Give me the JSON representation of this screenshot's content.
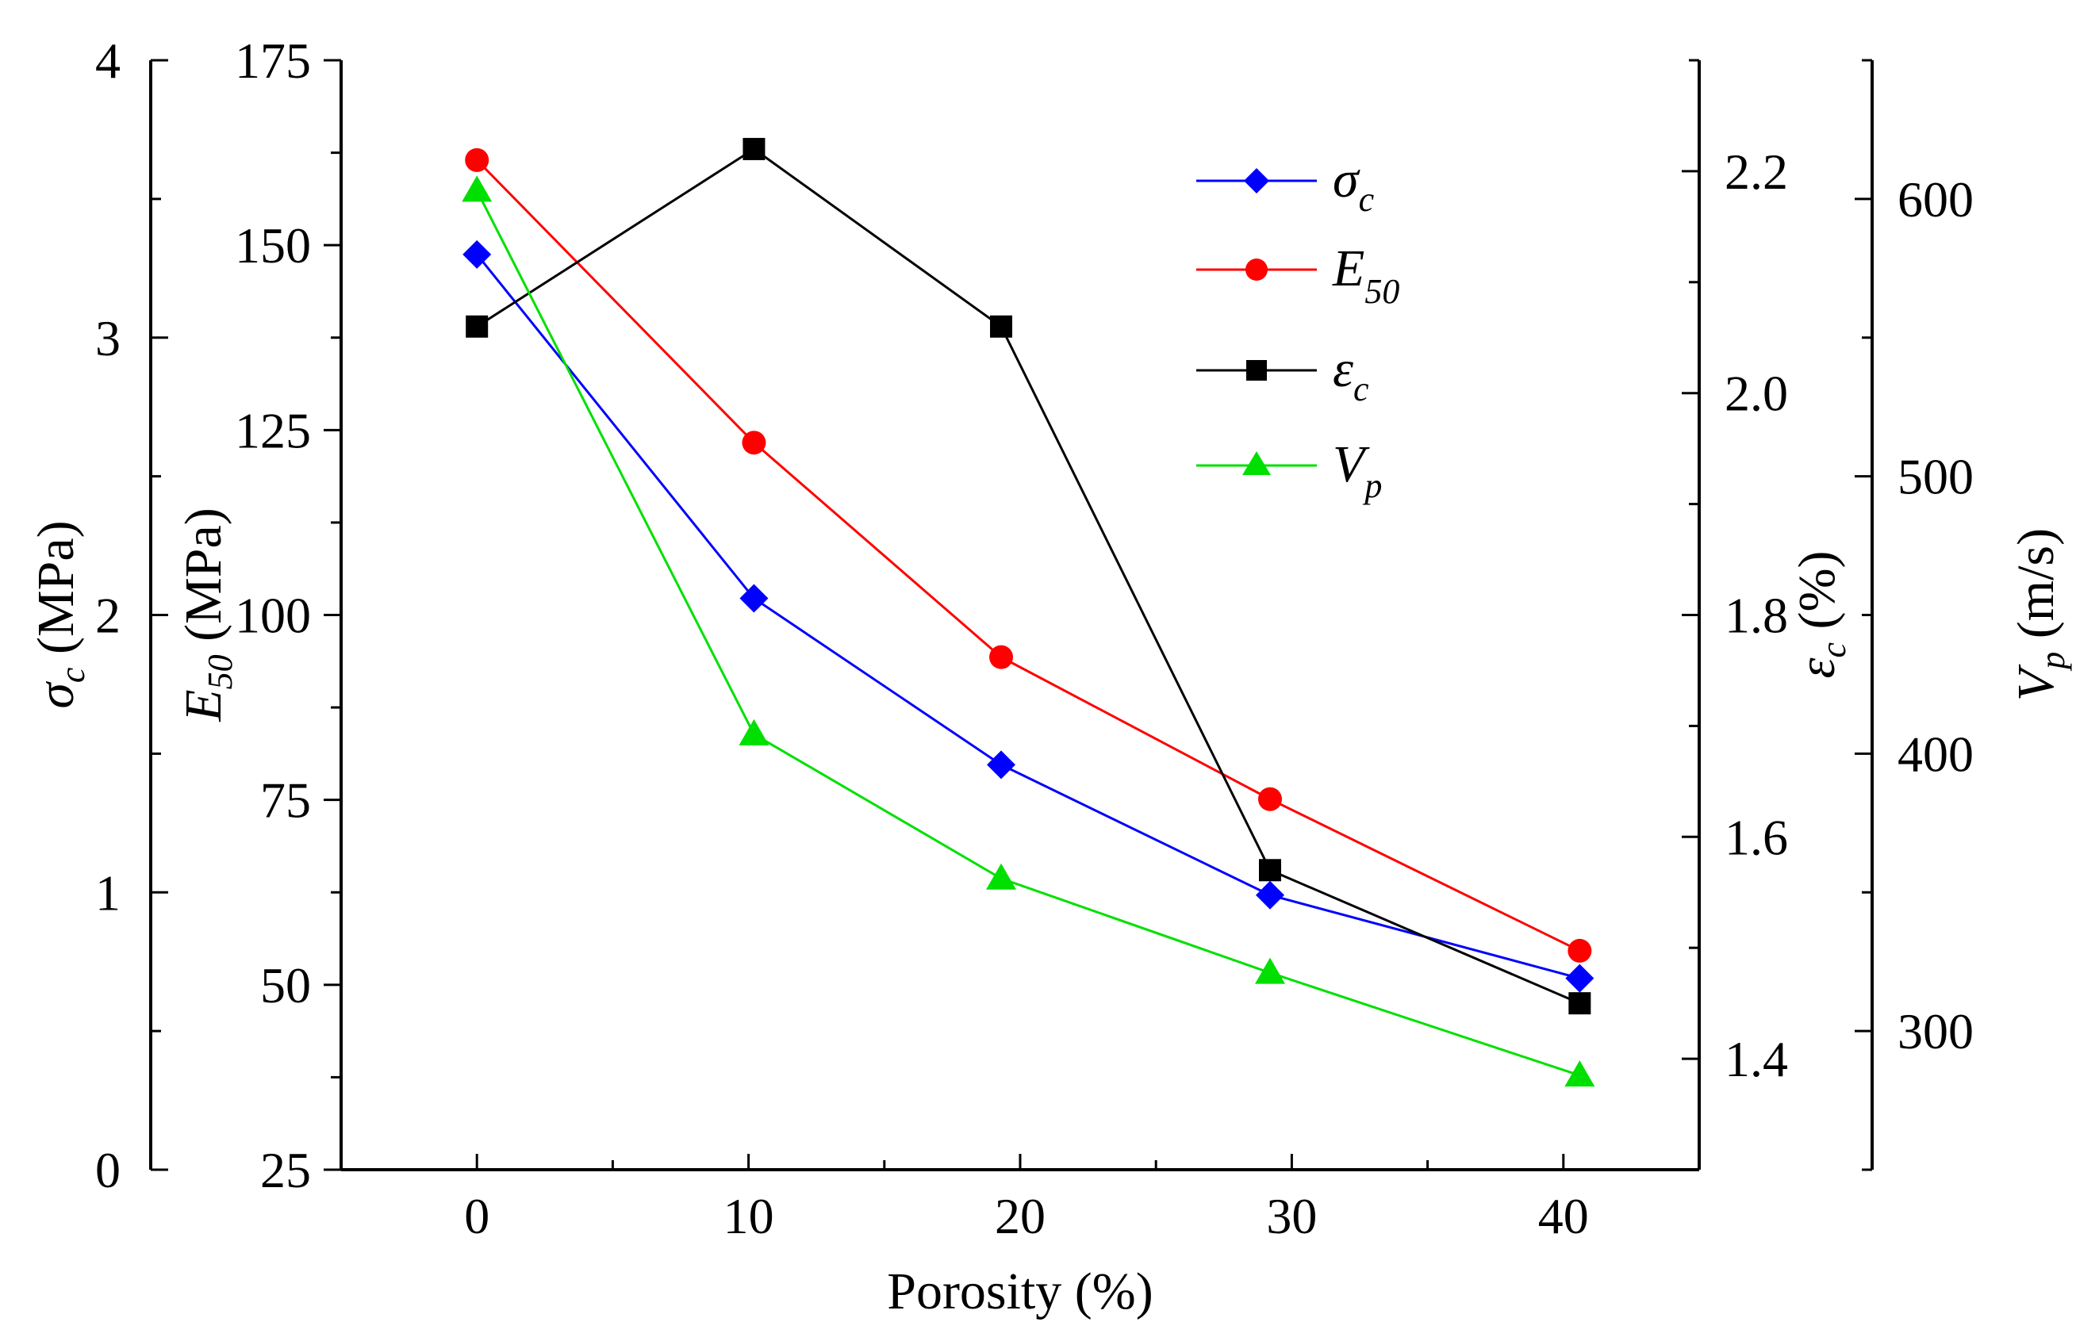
{
  "chart_data": {
    "type": "line",
    "xlabel": "Porosity (%)",
    "x": [
      0,
      10.2,
      19.3,
      29.2,
      40.6
    ],
    "xlim": [
      -5,
      45
    ],
    "xticks": [
      "0",
      "10",
      "20",
      "30",
      "40"
    ],
    "axes": {
      "sigma": {
        "label": "σ",
        "sub": "c",
        "unit": " (MPa)",
        "ylim": [
          0,
          4
        ],
        "ticks": [
          "0",
          "1",
          "2",
          "3",
          "4"
        ]
      },
      "E50": {
        "label": "E",
        "sub": "50",
        "unit": " (MPa)",
        "ylim": [
          25,
          175
        ],
        "ticks": [
          "25",
          "50",
          "75",
          "100",
          "125",
          "150",
          "175"
        ]
      },
      "eps": {
        "label": "ε",
        "sub": "c",
        "unit": " (%)",
        "ylim": [
          1.3,
          2.3
        ],
        "ticks": [
          "1.4",
          "1.6",
          "1.8",
          "2.0",
          "2.2"
        ]
      },
      "Vp": {
        "label": "V",
        "sub": "p",
        "unit": " (m/s)",
        "ylim": [
          250,
          650
        ],
        "ticks": [
          "300",
          "400",
          "500",
          "600"
        ]
      }
    },
    "series": [
      {
        "name": "σ",
        "sub": "c",
        "axis": "sigma",
        "values": [
          3.3,
          2.06,
          1.46,
          0.99,
          0.69
        ],
        "color": "#0000ff",
        "marker": "diamond"
      },
      {
        "name": "E",
        "sub": "50",
        "axis": "E50",
        "values": [
          161.5,
          123.3,
          94.3,
          75.1,
          54.6
        ],
        "color": "#ff0000",
        "marker": "circle"
      },
      {
        "name": "ε",
        "sub": "c",
        "axis": "eps",
        "values": [
          2.06,
          2.22,
          2.06,
          1.57,
          1.45
        ],
        "color": "#000000",
        "marker": "square"
      },
      {
        "name": "V",
        "sub": "p",
        "axis": "Vp",
        "values": [
          603,
          407,
          355,
          321,
          284
        ],
        "color": "#00e000",
        "marker": "triangle"
      }
    ]
  }
}
